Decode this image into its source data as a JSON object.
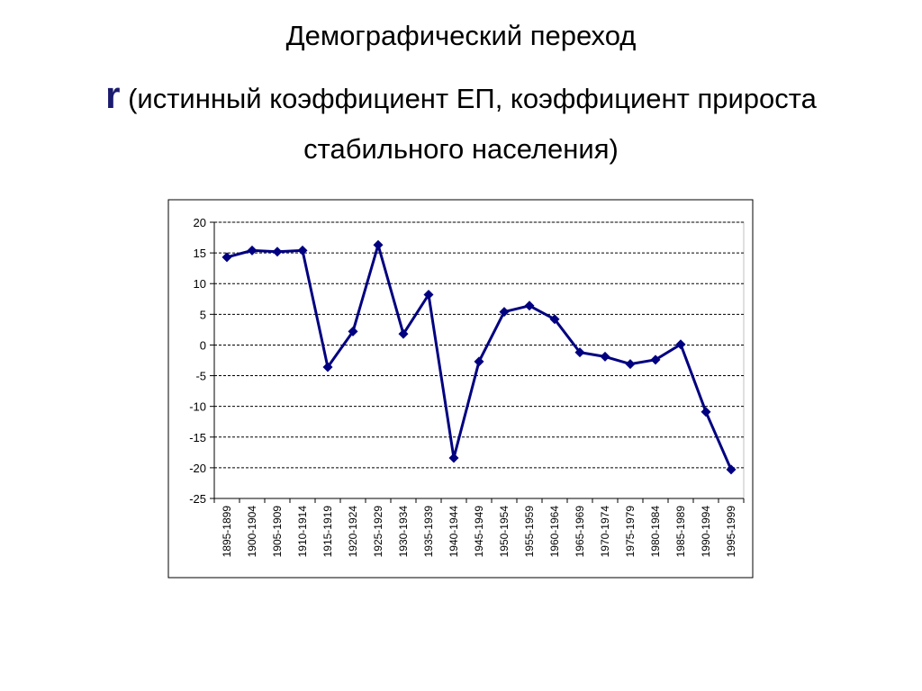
{
  "slide": {
    "title": "Демографический переход",
    "symbol": "r",
    "subtitle": "(истинный коэффициент ЕП, коэффициент прироста стабильного населения)"
  },
  "chart_data": {
    "type": "line",
    "title": "",
    "xlabel": "",
    "ylabel": "",
    "ylim": [
      -25,
      20
    ],
    "yticks": [
      "20",
      "15",
      "10",
      "5",
      "0",
      "-5",
      "-10",
      "-15",
      "-20",
      "-25"
    ],
    "grid": "horizontal dashed",
    "legend": "none",
    "colors": {
      "series": "#000080",
      "grid": "#000000",
      "plot_border": "#c0c0c0"
    },
    "categories": [
      "1895-1899",
      "1900-1904",
      "1905-1909",
      "1910-1914",
      "1915-1919",
      "1920-1924",
      "1925-1929",
      "1930-1934",
      "1935-1939",
      "1940-1944",
      "1945-1949",
      "1950-1954",
      "1955-1959",
      "1960-1964",
      "1965-1969",
      "1970-1974",
      "1975-1979",
      "1980-1984",
      "1985-1989",
      "1990-1994",
      "1995-1999"
    ],
    "values": [
      14.3,
      15.4,
      15.2,
      15.4,
      -3.6,
      2.2,
      16.3,
      1.8,
      8.2,
      -18.4,
      -2.7,
      5.4,
      6.4,
      4.2,
      -1.2,
      -1.9,
      -3.1,
      -2.4,
      0.1,
      -10.9,
      -20.3
    ]
  }
}
